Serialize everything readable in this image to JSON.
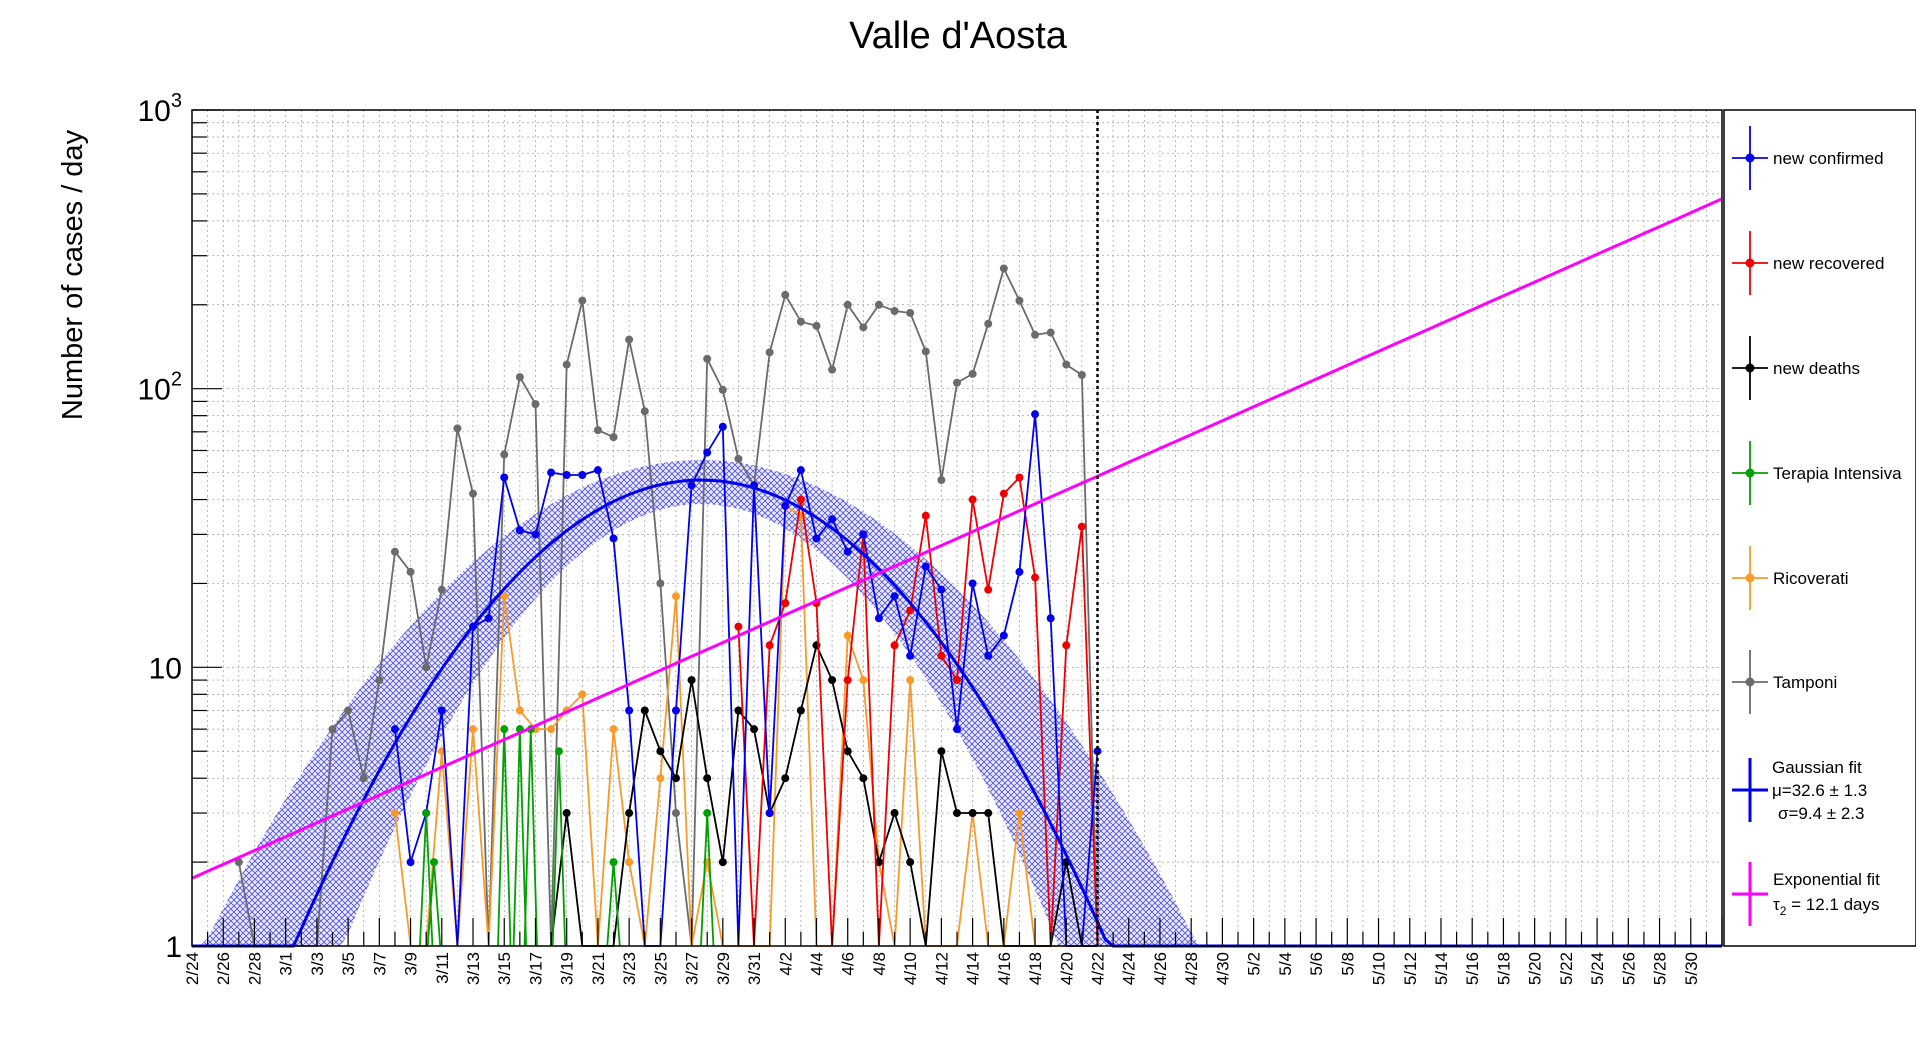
{
  "chart_data": {
    "type": "line",
    "title": "Valle d'Aosta",
    "ylabel": "Number of cases / day",
    "xlabel": "",
    "yscale": "log",
    "ylim": [
      1,
      1000
    ],
    "y_tick_labels": [
      "1",
      "10",
      "10^2",
      "10^3"
    ],
    "x_range_days": [
      0,
      98
    ],
    "x_tick_labels": [
      "2/24",
      "2/26",
      "2/28",
      "3/1",
      "3/3",
      "3/5",
      "3/7",
      "3/9",
      "3/11",
      "3/13",
      "3/15",
      "3/17",
      "3/19",
      "3/21",
      "3/23",
      "3/25",
      "3/27",
      "3/29",
      "3/31",
      "4/2",
      "4/4",
      "4/6",
      "4/8",
      "4/10",
      "4/12",
      "4/14",
      "4/16",
      "4/18",
      "4/20",
      "4/22",
      "4/24",
      "4/26",
      "4/28",
      "4/30",
      "5/2",
      "5/4",
      "5/6",
      "5/8",
      "5/10",
      "5/12",
      "5/14",
      "5/16",
      "5/18",
      "5/20",
      "5/22",
      "5/24",
      "5/26",
      "5/28",
      "5/30"
    ],
    "grid": true,
    "vertical_marker_day": 58,
    "legend_position": "right",
    "series": [
      {
        "name": "Tamponi",
        "color": "#6b6b6b",
        "values": [
          null,
          null,
          null,
          2,
          0,
          null,
          null,
          null,
          0,
          6,
          7,
          4,
          9,
          26,
          22,
          10,
          19,
          72,
          42,
          0,
          58,
          110,
          88,
          0,
          122,
          207,
          71,
          67,
          150,
          83,
          20,
          3,
          0,
          128,
          99,
          56,
          45,
          135,
          217,
          174,
          168,
          117,
          200,
          166,
          200,
          190,
          187,
          136,
          47,
          105,
          113,
          171,
          270,
          207,
          156,
          159,
          122,
          112,
          0
        ]
      },
      {
        "name": "new confirmed",
        "color": "#0000ee",
        "values": [
          null,
          null,
          null,
          null,
          null,
          null,
          null,
          null,
          null,
          null,
          null,
          null,
          null,
          6,
          2,
          3,
          7,
          0,
          14,
          15,
          48,
          31,
          30,
          50,
          49,
          49,
          51,
          29,
          7,
          0,
          0,
          7,
          45,
          59,
          73,
          0,
          45,
          3,
          38,
          51,
          29,
          34,
          26,
          30,
          15,
          18,
          11,
          23,
          19,
          6,
          20,
          11,
          13,
          22,
          81,
          15,
          0,
          0,
          5
        ]
      },
      {
        "name": "new recovered",
        "color": "#ee0000",
        "values": [
          null,
          null,
          null,
          null,
          null,
          null,
          null,
          null,
          null,
          null,
          null,
          null,
          null,
          null,
          null,
          null,
          null,
          null,
          null,
          null,
          null,
          null,
          null,
          null,
          null,
          null,
          null,
          null,
          null,
          null,
          null,
          null,
          null,
          null,
          null,
          14,
          0,
          12,
          17,
          40,
          17,
          0,
          9,
          30,
          0,
          12,
          16,
          35,
          11,
          9,
          40,
          19,
          42,
          48,
          21,
          0,
          12,
          32,
          0
        ]
      },
      {
        "name": "new deaths",
        "color": "#000000",
        "values": [
          null,
          null,
          null,
          null,
          null,
          null,
          null,
          null,
          null,
          null,
          null,
          null,
          null,
          null,
          null,
          null,
          null,
          null,
          null,
          null,
          null,
          null,
          null,
          0,
          3,
          0,
          0,
          0,
          3,
          7,
          5,
          4,
          9,
          4,
          2,
          7,
          6,
          3,
          4,
          7,
          12,
          9,
          5,
          4,
          2,
          3,
          2,
          0,
          5,
          3,
          3,
          3,
          0,
          0,
          0,
          0,
          2,
          0,
          0
        ]
      },
      {
        "name": "Terapia Intensiva",
        "color": "#00a000",
        "values": [
          null,
          null,
          null,
          null,
          null,
          null,
          null,
          null,
          null,
          null,
          null,
          null,
          null,
          null,
          null,
          null,
          null,
          null,
          null,
          null,
          null,
          null,
          null,
          null,
          null,
          null,
          null,
          null,
          null,
          null,
          null,
          null,
          null,
          null,
          null,
          null,
          null,
          null,
          null,
          null,
          null,
          null,
          null,
          null,
          null,
          null,
          null,
          null,
          null,
          null,
          null,
          null,
          null,
          null,
          null,
          null,
          null,
          null,
          null
        ]
      },
      {
        "name": "Ricoverati",
        "color": "#f79a28",
        "values": [
          null,
          null,
          null,
          null,
          null,
          null,
          null,
          null,
          null,
          null,
          null,
          null,
          null,
          3,
          0,
          0,
          5,
          0,
          6,
          0,
          18,
          7,
          6,
          6,
          7,
          8,
          0,
          6,
          2,
          0,
          4,
          18,
          0,
          2,
          0,
          0,
          0,
          0,
          38,
          35,
          0,
          0,
          13,
          9,
          2,
          0,
          9,
          0,
          0,
          0,
          3,
          0,
          0,
          3,
          0,
          0,
          0,
          0,
          0
        ]
      },
      {
        "name": "Gaussian fit",
        "color": "#0000ee",
        "mu": 32.6,
        "mu_err": 1.3,
        "sigma": 9.4,
        "sigma_err": 2.3,
        "amplitude": 47
      },
      {
        "name": "Exponential fit",
        "color": "#ff00ff",
        "doubling_days": 12.1,
        "value_at_day0": 1.75
      }
    ],
    "green_points": [
      [
        15,
        3
      ],
      [
        15.5,
        2
      ],
      [
        20,
        6
      ],
      [
        21,
        6
      ],
      [
        21.7,
        6
      ],
      [
        23.5,
        5
      ],
      [
        27,
        2
      ],
      [
        33,
        3
      ]
    ],
    "legend": {
      "new_confirmed": "new confirmed",
      "new_recovered": "new recovered",
      "new_deaths": "new deaths",
      "terapia": "Terapia Intensiva",
      "ricoverati": "Ricoverati",
      "tamponi": "Tamponi",
      "gauss_line1": "Gaussian fit",
      "gauss_line2": "μ=32.6 ± 1.3",
      "gauss_line3": "σ=9.4 ± 2.3",
      "exp_line1": "Exponential fit",
      "exp_line2": "τ",
      "exp_sub": "2",
      "exp_line3": " = 12.1 days"
    }
  }
}
